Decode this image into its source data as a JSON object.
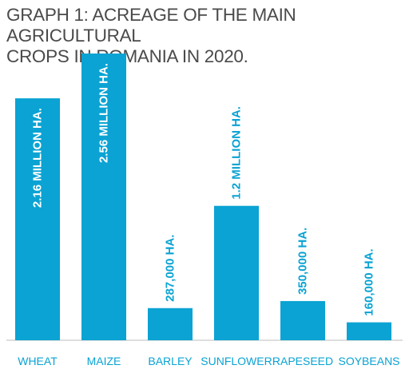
{
  "chart_data": {
    "type": "bar",
    "title": "GRAPH 1: ACREAGE OF THE MAIN AGRICULTURAL\nCROPS IN ROMANIA IN 2020.",
    "xlabel": "",
    "ylabel": "",
    "unit": "hectares",
    "categories": [
      "WHEAT",
      "MAIZE",
      "BARLEY",
      "SUNFLOWER",
      "RAPESEED",
      "SOYBEANS"
    ],
    "values": [
      2160000,
      2560000,
      287000,
      1200000,
      350000,
      160000
    ],
    "data_labels": [
      "2.16 MILLION HA.",
      "2.56 MILLION HA.",
      "287,000 HA.",
      "1.2 MILLION HA.",
      "350,000 HA.",
      "160,000 HA."
    ],
    "ylim": [
      0,
      2560000
    ],
    "grid": false,
    "legend": "none",
    "colors": {
      "bar": "#0aa3d3",
      "label_inside": "#ffffff",
      "label_outside": "#0aa3d3",
      "category": "#0aa3d3",
      "axis": "#bdbdbd",
      "title": "#4a4a4a"
    }
  }
}
